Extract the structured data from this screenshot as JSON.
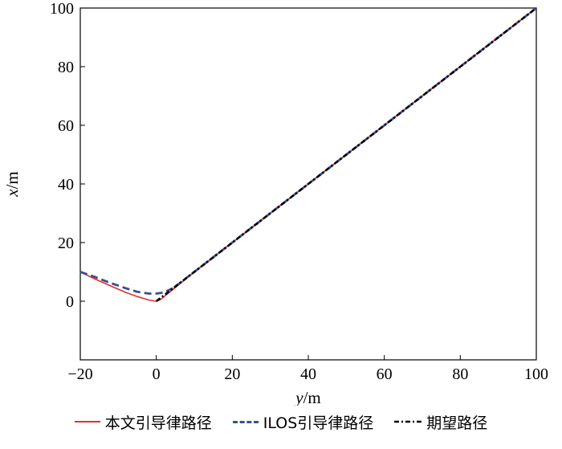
{
  "chart_data": {
    "type": "line",
    "xlabel_var": "y",
    "xlabel_unit": "/m",
    "ylabel_var": "x",
    "ylabel_unit": "/m",
    "xlim": [
      -20,
      100
    ],
    "ylim": [
      -20,
      100
    ],
    "xticks": [
      -20,
      0,
      20,
      40,
      60,
      80,
      100
    ],
    "yticks": [
      0,
      20,
      40,
      60,
      80,
      100
    ],
    "xtick_labels": [
      "−20",
      "0",
      "20",
      "40",
      "60",
      "80",
      "100"
    ],
    "ytick_labels": [
      "0",
      "20",
      "40",
      "60",
      "80",
      "100"
    ],
    "grid": false,
    "legend_position": "bottom",
    "series": [
      {
        "name": "本文引导律路径",
        "color": "#e03030",
        "dash": "solid",
        "x": [
          -20,
          -16,
          -12,
          -8,
          -5,
          -2,
          0,
          1,
          2,
          4,
          7,
          10,
          20,
          40,
          60,
          80,
          100
        ],
        "y": [
          10,
          7.5,
          5.2,
          3.0,
          1.6,
          0.4,
          0.0,
          0.5,
          1.5,
          3.6,
          6.8,
          10,
          20,
          40,
          60,
          80,
          100
        ]
      },
      {
        "name": "ILOS引导律路径",
        "color": "#3c4e8c",
        "dash": "dashed",
        "x": [
          -20,
          -16,
          -12,
          -8,
          -5,
          -2,
          0,
          2,
          4,
          6,
          8,
          10,
          20,
          40,
          60,
          80,
          100
        ],
        "y": [
          10,
          8.2,
          6.2,
          4.4,
          3.2,
          2.6,
          2.6,
          3.0,
          4.2,
          6.0,
          8.0,
          10,
          20,
          40,
          60,
          80,
          100
        ]
      },
      {
        "name": "期望路径",
        "color": "#000000",
        "dash": "dashdot",
        "x": [
          0,
          100
        ],
        "y": [
          0,
          100
        ]
      }
    ]
  }
}
